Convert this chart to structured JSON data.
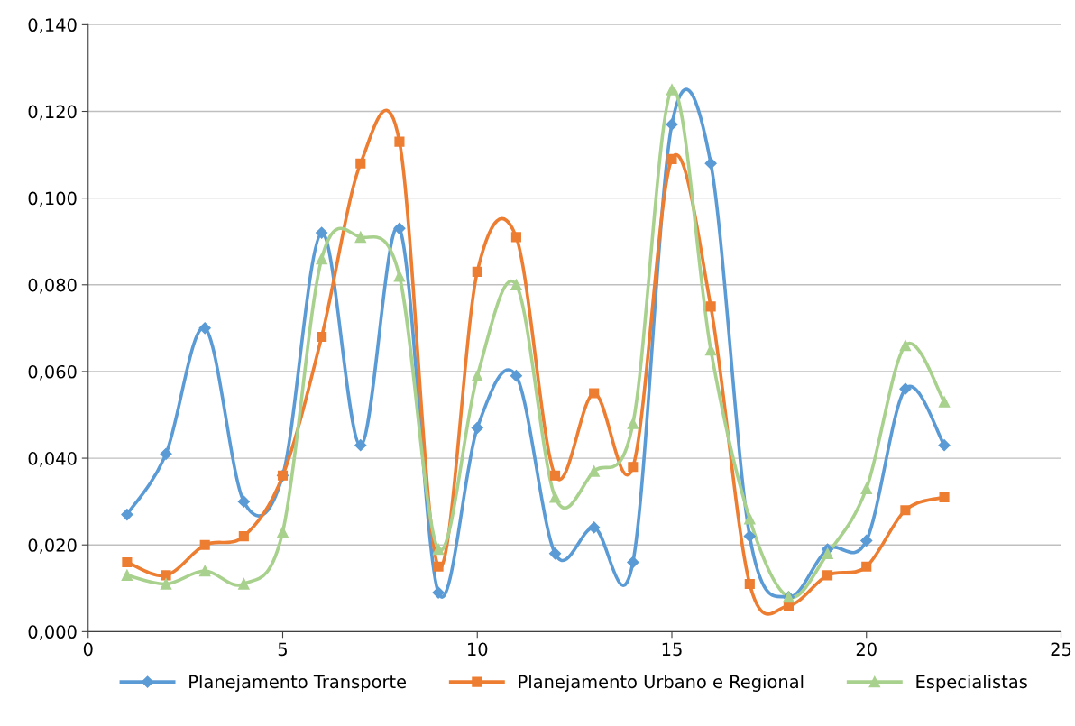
{
  "chart_data": {
    "type": "line",
    "x": [
      1,
      2,
      3,
      4,
      5,
      6,
      7,
      8,
      9,
      10,
      11,
      12,
      13,
      14,
      15,
      16,
      17,
      18,
      19,
      20,
      21,
      22
    ],
    "series": [
      {
        "name": "Planejamento Transporte",
        "color": "#5b9bd5",
        "marker": "diamond",
        "values": [
          0.027,
          0.041,
          0.07,
          0.03,
          0.036,
          0.092,
          0.043,
          0.093,
          0.009,
          0.047,
          0.059,
          0.018,
          0.024,
          0.016,
          0.117,
          0.108,
          0.022,
          0.008,
          0.019,
          0.021,
          0.056,
          0.043
        ]
      },
      {
        "name": "Planejamento Urbano e Regional",
        "color": "#ed7d31",
        "marker": "square",
        "values": [
          0.016,
          0.013,
          0.02,
          0.022,
          0.036,
          0.068,
          0.108,
          0.113,
          0.015,
          0.083,
          0.091,
          0.036,
          0.055,
          0.038,
          0.109,
          0.075,
          0.011,
          0.006,
          0.013,
          0.015,
          0.028,
          0.031
        ]
      },
      {
        "name": "Especialistas",
        "color": "#a9d18e",
        "marker": "triangle",
        "values": [
          0.013,
          0.011,
          0.014,
          0.011,
          0.023,
          0.086,
          0.091,
          0.082,
          0.019,
          0.059,
          0.08,
          0.031,
          0.037,
          0.048,
          0.125,
          0.065,
          0.026,
          0.008,
          0.018,
          0.033,
          0.066,
          0.053
        ]
      }
    ],
    "xlim": [
      0,
      25
    ],
    "xticks": [
      0,
      5,
      10,
      15,
      20,
      25
    ],
    "ylim": [
      0,
      0.14
    ],
    "yticks": [
      {
        "value": 0,
        "label": "0,000"
      },
      {
        "value": 0.02,
        "label": "0,020"
      },
      {
        "value": 0.04,
        "label": "0,040"
      },
      {
        "value": 0.06,
        "label": "0,060"
      },
      {
        "value": 0.08,
        "label": "0,080"
      },
      {
        "value": 0.1,
        "label": "0,100"
      },
      {
        "value": 0.12,
        "label": "0,120"
      },
      {
        "value": 0.14,
        "label": "0,140"
      }
    ],
    "grid": "y",
    "legend": "bottom",
    "line_style": "solid"
  }
}
